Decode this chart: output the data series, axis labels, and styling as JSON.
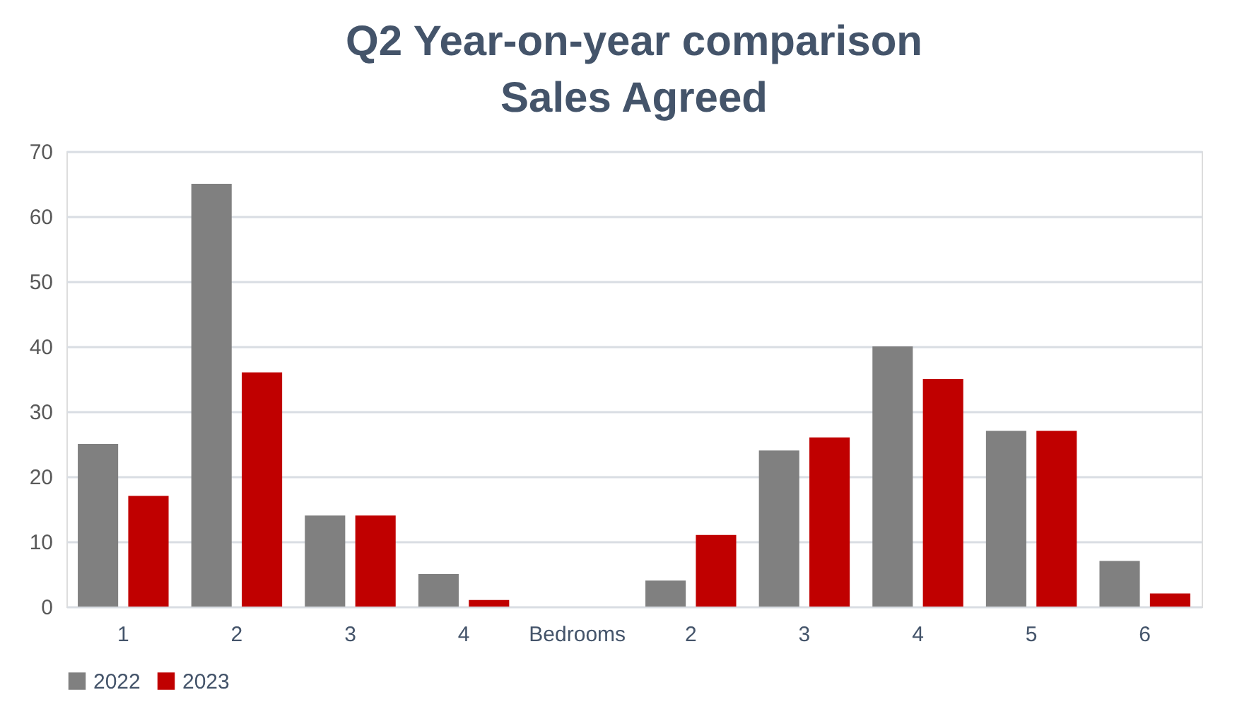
{
  "chart_data": {
    "type": "bar",
    "title": "Q2 Year-on-year comparison\nSales Agreed",
    "categories": [
      "1",
      "2",
      "3",
      "4",
      "Bedrooms",
      "2",
      "3",
      "4",
      "5",
      "6"
    ],
    "series": [
      {
        "name": "2022",
        "color": "#808080",
        "values": [
          25,
          65,
          14,
          5,
          null,
          4,
          24,
          40,
          27,
          7
        ]
      },
      {
        "name": "2023",
        "color": "#c00000",
        "values": [
          17,
          36,
          14,
          1,
          null,
          11,
          26,
          35,
          27,
          2
        ]
      }
    ],
    "ylim": [
      0,
      70
    ],
    "yticks": [
      0,
      10,
      20,
      30,
      40,
      50,
      60,
      70
    ],
    "grid": "y",
    "legend": "bottom"
  }
}
